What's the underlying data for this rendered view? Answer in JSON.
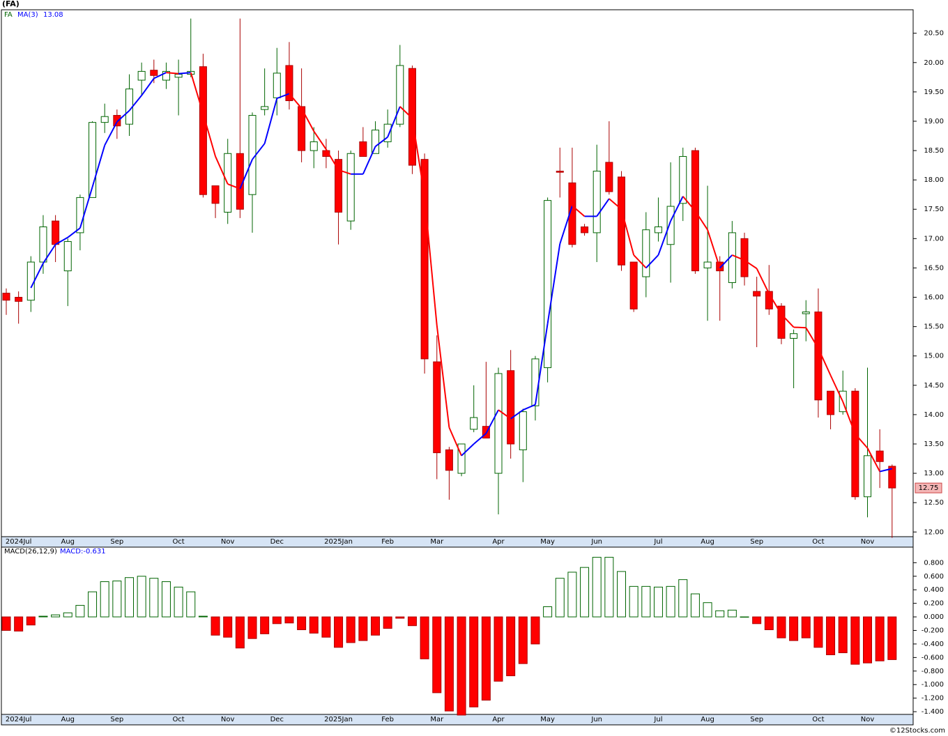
{
  "chart_data": [
    {
      "type": "candlestick",
      "title": "(FA)",
      "symbol": "FA",
      "ma_name": "MA(3)",
      "open": [
        16.07,
        16.0,
        15.95,
        16.6,
        17.3,
        16.45,
        17.1,
        17.7,
        18.98,
        19.1,
        18.95,
        19.7,
        19.87,
        19.7,
        19.75,
        19.8,
        19.93,
        17.9,
        17.45,
        18.45,
        17.75,
        19.2,
        19.4,
        19.95,
        19.25,
        18.5,
        18.5,
        18.35,
        17.3,
        18.65,
        18.45,
        18.65,
        18.95,
        19.9,
        18.35,
        14.9,
        13.4,
        13.0,
        13.75,
        13.8,
        13.0,
        14.75,
        13.4,
        14.15,
        14.8,
        18.15,
        17.95,
        17.2,
        17.1,
        18.3,
        18.05,
        16.6,
        16.35,
        17.1,
        16.9,
        17.6,
        18.5,
        16.5,
        16.6,
        16.25,
        17.0,
        16.1,
        16.1,
        15.85,
        15.3,
        15.72,
        15.75,
        14.4,
        14.05,
        14.4,
        12.6,
        13.38,
        13.12
      ],
      "high": [
        16.15,
        16.1,
        16.7,
        17.4,
        17.4,
        17.0,
        17.75,
        19.0,
        19.3,
        19.2,
        19.8,
        20.0,
        20.05,
        20.0,
        20.05,
        20.75,
        20.15,
        17.9,
        18.7,
        20.75,
        19.15,
        19.9,
        20.25,
        20.35,
        19.9,
        18.9,
        18.7,
        18.5,
        18.5,
        18.9,
        19.0,
        19.2,
        20.3,
        19.95,
        18.45,
        15.35,
        13.45,
        13.5,
        14.5,
        14.9,
        14.8,
        15.1,
        14.1,
        15.0,
        17.7,
        18.55,
        18.55,
        17.25,
        18.6,
        19.0,
        18.15,
        16.6,
        17.45,
        17.7,
        18.3,
        18.55,
        18.55,
        17.9,
        16.7,
        17.3,
        17.1,
        16.35,
        16.55,
        15.9,
        15.45,
        15.95,
        16.15,
        14.4,
        14.75,
        14.45,
        14.8,
        13.75,
        13.15
      ],
      "low": [
        15.7,
        15.55,
        15.75,
        16.4,
        16.6,
        15.85,
        16.8,
        17.7,
        18.8,
        18.7,
        18.75,
        19.45,
        19.65,
        19.55,
        19.1,
        19.75,
        17.7,
        17.35,
        17.25,
        17.35,
        17.1,
        19.1,
        19.1,
        19.2,
        18.3,
        18.2,
        18.2,
        16.9,
        17.15,
        18.4,
        18.45,
        18.55,
        18.9,
        18.1,
        14.7,
        12.9,
        12.55,
        12.95,
        13.7,
        13.6,
        12.3,
        13.25,
        12.85,
        13.9,
        14.55,
        17.7,
        16.85,
        17.05,
        16.6,
        17.75,
        16.45,
        15.75,
        16.0,
        16.95,
        16.25,
        17.3,
        16.4,
        15.6,
        15.6,
        16.15,
        16.2,
        15.15,
        15.7,
        15.2,
        14.45,
        15.25,
        13.95,
        13.75,
        14.0,
        12.55,
        12.25,
        12.75,
        11.9
      ],
      "close": [
        15.95,
        15.93,
        16.6,
        17.2,
        16.9,
        16.95,
        17.7,
        18.98,
        19.08,
        18.92,
        19.55,
        19.85,
        19.78,
        19.85,
        19.8,
        19.85,
        17.75,
        17.6,
        18.45,
        17.5,
        19.1,
        19.25,
        19.82,
        19.35,
        18.5,
        18.65,
        18.4,
        17.45,
        18.45,
        18.4,
        18.85,
        18.95,
        19.95,
        18.25,
        14.95,
        13.35,
        13.05,
        13.5,
        13.95,
        13.6,
        14.7,
        13.5,
        14.05,
        14.95,
        17.65,
        18.13,
        16.9,
        17.1,
        18.15,
        17.8,
        16.55,
        15.8,
        17.15,
        17.2,
        17.55,
        18.4,
        16.45,
        16.6,
        16.45,
        17.1,
        16.35,
        16.02,
        15.8,
        15.3,
        15.38,
        15.75,
        14.25,
        14.0,
        14.4,
        12.6,
        13.3,
        13.2,
        12.75
      ],
      "ma": [
        null,
        null,
        16.16,
        16.58,
        16.9,
        17.02,
        17.18,
        17.88,
        18.59,
        18.99,
        19.18,
        19.44,
        19.73,
        19.83,
        19.81,
        19.83,
        19.13,
        18.4,
        17.93,
        17.85,
        18.35,
        18.62,
        19.39,
        19.47,
        19.22,
        18.83,
        18.52,
        18.17,
        18.1,
        18.1,
        18.57,
        18.73,
        19.25,
        19.05,
        17.72,
        15.52,
        13.78,
        13.3,
        13.5,
        13.68,
        14.08,
        13.93,
        14.08,
        14.17,
        15.55,
        16.91,
        17.56,
        17.38,
        17.38,
        17.68,
        17.5,
        16.72,
        16.5,
        16.72,
        17.3,
        17.72,
        17.47,
        17.15,
        16.5,
        16.72,
        16.63,
        16.49,
        16.06,
        15.71,
        15.49,
        15.48,
        15.13,
        14.67,
        14.22,
        13.67,
        13.43,
        13.03,
        13.08
      ],
      "up_color": "#ff0000",
      "down_color": "#006400",
      "ma_up_color": "#0000ff",
      "ma_down_color": "#ff0000",
      "ylim": [
        11.92,
        20.9
      ],
      "yticks": [
        {
          "value": 12,
          "label": "12.00"
        },
        {
          "value": 12.5,
          "label": "12.50"
        },
        {
          "value": 13,
          "label": "13.00"
        },
        {
          "value": 13.5,
          "label": "13.50"
        },
        {
          "value": 14,
          "label": "14.00"
        },
        {
          "value": 14.5,
          "label": "14.50"
        },
        {
          "value": 15,
          "label": "15.00"
        },
        {
          "value": 15.5,
          "label": "15.50"
        },
        {
          "value": 16,
          "label": "16.00"
        },
        {
          "value": 16.5,
          "label": "16.50"
        },
        {
          "value": 17,
          "label": "17.00"
        },
        {
          "value": 17.5,
          "label": "17.50"
        },
        {
          "value": 18,
          "label": "18.00"
        },
        {
          "value": 18.5,
          "label": "18.50"
        },
        {
          "value": 19,
          "label": "19.00"
        },
        {
          "value": 19.5,
          "label": "19.50"
        },
        {
          "value": 20,
          "label": "20.00"
        },
        {
          "value": 20.5,
          "label": "20.50"
        }
      ],
      "x_labels": [
        {
          "label": "2024Jul",
          "index": 1
        },
        {
          "label": "Aug",
          "index": 5
        },
        {
          "label": "Sep",
          "index": 9
        },
        {
          "label": "Oct",
          "index": 14
        },
        {
          "label": "Nov",
          "index": 18
        },
        {
          "label": "Dec",
          "index": 22
        },
        {
          "label": "2025Jan",
          "index": 27
        },
        {
          "label": "Feb",
          "index": 31
        },
        {
          "label": "Mar",
          "index": 35
        },
        {
          "label": "Apr",
          "index": 40
        },
        {
          "label": "May",
          "index": 44
        },
        {
          "label": "Jun",
          "index": 48
        },
        {
          "label": "Jul",
          "index": 53
        },
        {
          "label": "Aug",
          "index": 57
        },
        {
          "label": "Sep",
          "index": 61
        },
        {
          "label": "Oct",
          "index": 66
        },
        {
          "label": "Nov",
          "index": 70
        }
      ],
      "credit": "©12Stocks.com"
    },
    {
      "type": "histogram",
      "title": "MACD(26,12,9)",
      "value_text": "MACD:-0.631",
      "values": [
        -0.2,
        -0.21,
        -0.12,
        0.01,
        0.03,
        0.06,
        0.17,
        0.37,
        0.52,
        0.53,
        0.58,
        0.6,
        0.57,
        0.52,
        0.44,
        0.37,
        0.01,
        -0.27,
        -0.3,
        -0.46,
        -0.32,
        -0.25,
        -0.1,
        -0.09,
        -0.19,
        -0.24,
        -0.3,
        -0.45,
        -0.38,
        -0.35,
        -0.27,
        -0.17,
        -0.02,
        -0.13,
        -0.62,
        -1.12,
        -1.39,
        -1.45,
        -1.33,
        -1.23,
        -0.95,
        -0.87,
        -0.69,
        -0.4,
        0.15,
        0.57,
        0.66,
        0.73,
        0.88,
        0.88,
        0.67,
        0.45,
        0.45,
        0.44,
        0.45,
        0.55,
        0.34,
        0.21,
        0.09,
        0.1,
        0.0,
        -0.1,
        -0.19,
        -0.31,
        -0.35,
        -0.31,
        -0.45,
        -0.56,
        -0.53,
        -0.7,
        -0.68,
        -0.65,
        -0.631
      ],
      "pos_color": "#006400",
      "neg_color": "#ff0000",
      "ylim": [
        -1.44,
        1.03
      ],
      "yticks": [
        {
          "value": -1.4,
          "label": "-1.400"
        },
        {
          "value": -1.2,
          "label": "-1.200"
        },
        {
          "value": -1,
          "label": "-1.000"
        },
        {
          "value": -0.8,
          "label": "-0.800"
        },
        {
          "value": -0.6,
          "label": "-0.600"
        },
        {
          "value": -0.4,
          "label": "-0.400"
        },
        {
          "value": -0.2,
          "label": "-0.200"
        },
        {
          "value": 0,
          "label": "0.000"
        },
        {
          "value": 0.2,
          "label": "0.200"
        },
        {
          "value": 0.4,
          "label": "0.400"
        },
        {
          "value": 0.6,
          "label": "0.600"
        },
        {
          "value": 0.8,
          "label": "0.800"
        }
      ]
    }
  ]
}
